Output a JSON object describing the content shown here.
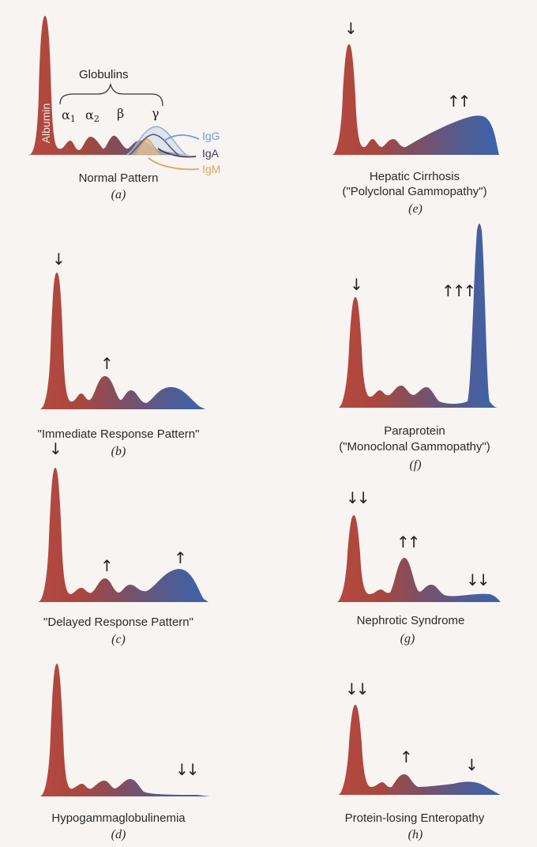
{
  "colors": {
    "albumin_red": "#b5483f",
    "gamma_blue": "#3a63ad",
    "igg": "#6f9fd0",
    "iga": "#3b3b5a",
    "igm": "#e1a55c"
  },
  "panel_a": {
    "albumin_label": "Albumin",
    "globulins_label": "Globulins",
    "alpha1": "α",
    "alpha1_sub": "1",
    "alpha2": "α",
    "alpha2_sub": "2",
    "beta": "β",
    "gamma": "γ",
    "igg": "IgG",
    "iga": "IgA",
    "igm": "IgM",
    "caption": "Normal Pattern",
    "letter": "(a)"
  },
  "panels": [
    {
      "id": "b",
      "caption_lines": [
        "\"Immediate Response Pattern\""
      ],
      "letter": "(b)",
      "arrows": [
        "↓",
        "↑"
      ]
    },
    {
      "id": "c",
      "caption_lines": [
        "\"Delayed Response Pattern\""
      ],
      "letter": "(c)",
      "arrows": [
        "↓",
        "↑",
        "↑"
      ]
    },
    {
      "id": "d",
      "caption_lines": [
        "Hypogammaglobulinemia"
      ],
      "letter": "(d)",
      "arrows": [
        "↓↓"
      ]
    },
    {
      "id": "e",
      "caption_lines": [
        "Hepatic Cirrhosis",
        "(\"Polyclonal Gammopathy\")"
      ],
      "letter": "(e)",
      "arrows": [
        "↓",
        "↑↑"
      ]
    },
    {
      "id": "f",
      "caption_lines": [
        "Paraprotein",
        "(\"Monoclonal Gammopathy\")"
      ],
      "letter": "(f)",
      "arrows": [
        "↓",
        "↑↑↑"
      ]
    },
    {
      "id": "g",
      "caption_lines": [
        "Nephrotic Syndrome"
      ],
      "letter": "(g)",
      "arrows": [
        "↓↓",
        "↑↑",
        "↓↓"
      ]
    },
    {
      "id": "h",
      "caption_lines": [
        "Protein-losing Enteropathy"
      ],
      "letter": "(h)",
      "arrows": [
        "↓↓",
        "↑",
        "↓"
      ]
    }
  ]
}
